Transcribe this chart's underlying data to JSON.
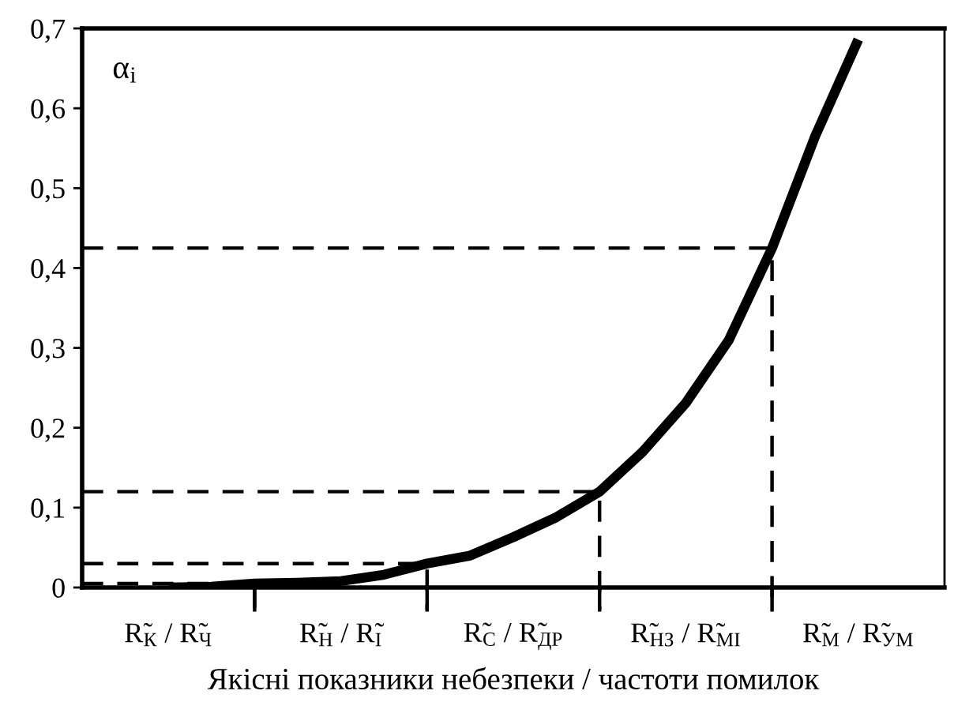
{
  "chart_data": {
    "type": "line",
    "xlabel": "Якісні показники небезпеки / частоти помилок",
    "ylabel": "α$_{i}$",
    "categories": [
      "R̃$_{К}$ / R̃$_{Ч}$",
      null,
      null,
      null,
      "R̃$_{Н}$ / R̃$_{І}$",
      null,
      null,
      null,
      "R̃$_{С}$ / R̃$_{ДР}$",
      null,
      null,
      null,
      "R̃$_{НЗ}$ / R̃$_{МІ}$",
      null,
      null,
      null,
      "R̃$_{М}$ / R̃$_{УМ}$"
    ],
    "series": [
      {
        "color": "#000000",
        "values": [
          0.0,
          0.001,
          0.005,
          0.006,
          0.008,
          0.016,
          0.03,
          0.04,
          0.063,
          0.088,
          0.12,
          0.17,
          0.231,
          0.31,
          0.425,
          0.565,
          0.686
        ]
      }
    ],
    "ylim": [
      0,
      0.7
    ],
    "yticks": [
      0,
      {
        "value": 0.1,
        "label": "0,1"
      },
      {
        "value": 0.2,
        "label": "0,2"
      },
      {
        "value": 0.3,
        "label": "0,3"
      },
      {
        "value": 0.4,
        "label": "0,4"
      },
      {
        "value": 0.5,
        "label": "0,5"
      },
      {
        "value": 0.6,
        "label": "0,6"
      },
      {
        "value": 0.7,
        "label": "0,7"
      }
    ],
    "ref_lines": [
      {
        "axis": "y",
        "value": 0.005,
        "line_style": "dashed",
        "color": "#000000"
      },
      {
        "axis": "y",
        "value": 0.03,
        "line_style": "dashed",
        "color": "#000000"
      },
      {
        "axis": "y",
        "value": 0.12,
        "line_style": "dashed",
        "color": "#000000"
      },
      {
        "axis": "y",
        "value": 0.425,
        "line_style": "dashed",
        "color": "#000000"
      }
    ],
    "grid": false,
    "legend": false,
    "marker": "none",
    "line_style": "solid"
  }
}
